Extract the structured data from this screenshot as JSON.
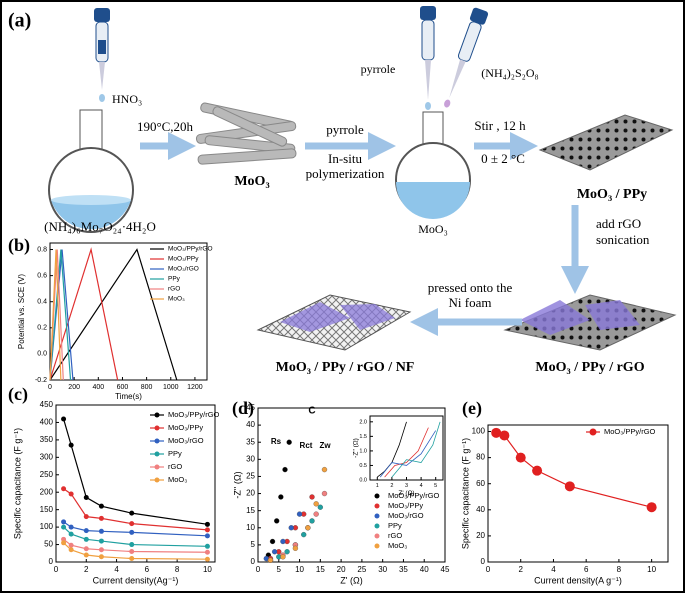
{
  "diagram": {
    "panel": "(a)",
    "reagent_acid": "HNO₃",
    "hydrothermal": "190°C,20h",
    "precursor": "(NH₄)₆Mo₇O₂₄·4H₂O",
    "rods": "MoO₃",
    "step2_top": "pyrrole",
    "step2_bottom": [
      "In-situ",
      "polymerization"
    ],
    "pipette_left": "pyrrole",
    "pipette_right": "(NH₄)₂S₂O₈",
    "flask2": "MoO₃",
    "stir": "Stir , 12 h",
    "temp": "0 ± 2 °C",
    "product1": "MoO₃ / PPy",
    "step4": [
      "add rGO",
      "sonication"
    ],
    "product2": "MoO₃ / PPy / rGO",
    "step5": [
      "pressed onto the",
      "Ni foam"
    ],
    "product3": "MoO₃ / PPy / rGO / NF"
  },
  "chart_data": [
    {
      "type": "line",
      "panel": "(b)",
      "x_label": "Time(s)",
      "y_label": "Potential vs. SCE (V)",
      "xlim": [
        0,
        1300
      ],
      "xticks": [
        0,
        200,
        400,
        600,
        800,
        1000,
        1200
      ],
      "ylim": [
        -0.2,
        0.85
      ],
      "yticks": [
        -0.2,
        {
          "value": 0,
          "label": "0.0"
        },
        0.2,
        0.4,
        0.6,
        0.8
      ],
      "legend": "upper right",
      "markers": false,
      "series": [
        {
          "name": "MoO₃/PPy/rGO",
          "color": "#000000",
          "x": [
            0,
            720,
            1050
          ],
          "values": [
            -0.2,
            0.8,
            -0.2
          ]
        },
        {
          "name": "MoO₃/PPy",
          "color": "#e03030",
          "x": [
            0,
            340,
            560
          ],
          "values": [
            -0.2,
            0.8,
            -0.2
          ]
        },
        {
          "name": "MoO₃/rGO",
          "color": "#3060c0",
          "x": [
            0,
            100,
            190
          ],
          "values": [
            -0.2,
            0.8,
            -0.2
          ]
        },
        {
          "name": "PPy",
          "color": "#20a0a0",
          "x": [
            0,
            90,
            170
          ],
          "values": [
            -0.2,
            0.8,
            -0.2
          ]
        },
        {
          "name": "rGO",
          "color": "#f08080",
          "x": [
            0,
            60,
            110
          ],
          "values": [
            -0.2,
            0.8,
            -0.2
          ]
        },
        {
          "name": "MoO₃",
          "color": "#f0a040",
          "x": [
            0,
            50,
            90
          ],
          "values": [
            -0.2,
            0.8,
            -0.2
          ]
        }
      ]
    },
    {
      "type": "line",
      "panel": "(c)",
      "x_label": "Current density(Ag⁻¹)",
      "y_label": "Specific capacitance (F g⁻¹)",
      "xlim": [
        0,
        10.5
      ],
      "xticks": [
        0,
        2,
        4,
        6,
        8,
        10
      ],
      "ylim": [
        0,
        450
      ],
      "yticks": [
        0,
        50,
        100,
        150,
        200,
        250,
        300,
        350,
        400,
        450
      ],
      "legend": "upper right",
      "markers": true,
      "x": [
        0.5,
        1,
        2,
        3,
        5,
        10
      ],
      "series": [
        {
          "name": "MoO₃/PPy/rGO",
          "color": "#000000",
          "values": [
            410,
            335,
            185,
            160,
            140,
            108
          ]
        },
        {
          "name": "MoO₃/PPy",
          "color": "#e03030",
          "values": [
            210,
            195,
            130,
            125,
            110,
            92
          ]
        },
        {
          "name": "MoO₃/rGO",
          "color": "#3060c0",
          "values": [
            115,
            100,
            90,
            88,
            85,
            75
          ]
        },
        {
          "name": "PPy",
          "color": "#20a0a0",
          "values": [
            100,
            80,
            65,
            60,
            50,
            45
          ]
        },
        {
          "name": "rGO",
          "color": "#f08080",
          "values": [
            65,
            48,
            38,
            35,
            30,
            28
          ]
        },
        {
          "name": "MoO₃",
          "color": "#f0a040",
          "values": [
            55,
            35,
            20,
            15,
            10,
            8
          ]
        }
      ]
    },
    {
      "type": "scatter",
      "panel": "(d)",
      "x_label": "Z' (Ω)",
      "y_label": "-Z'' (Ω)",
      "xlim": [
        0,
        45
      ],
      "xticks": [
        0,
        5,
        10,
        15,
        20,
        25,
        30,
        35,
        40,
        45
      ],
      "ylim": [
        0,
        45
      ],
      "yticks": [
        0,
        5,
        10,
        15,
        20,
        25,
        30,
        35,
        40,
        45
      ],
      "legend": "lower right",
      "circuit_labels": [
        "C",
        "Rs",
        "Rct",
        "Zw"
      ],
      "series": [
        {
          "name": "MoO₃/PPy/rGO",
          "color": "#000000",
          "x": [
            2.5,
            3.5,
            4.5,
            5.5,
            6.5,
            7.5
          ],
          "values": [
            2,
            6,
            12,
            19,
            27,
            35
          ]
        },
        {
          "name": "MoO₃/PPy",
          "color": "#e03030",
          "x": [
            3,
            5,
            7,
            9,
            11,
            13
          ],
          "values": [
            1,
            3,
            6,
            10,
            14,
            19
          ]
        },
        {
          "name": "MoO₃/rGO",
          "color": "#3060c0",
          "x": [
            2,
            4,
            6,
            8,
            10
          ],
          "values": [
            1,
            3,
            6,
            10,
            14
          ]
        },
        {
          "name": "PPy",
          "color": "#20a0a0",
          "x": [
            3,
            5,
            7,
            9,
            11,
            13,
            15
          ],
          "values": [
            0.5,
            1.5,
            3,
            5,
            8,
            12,
            16
          ]
        },
        {
          "name": "rGO",
          "color": "#f08080",
          "x": [
            3,
            6,
            9,
            12,
            14,
            16
          ],
          "values": [
            0.5,
            2,
            5,
            10,
            14,
            20
          ]
        },
        {
          "name": "MoO₃",
          "color": "#f0a040",
          "x": [
            3,
            6,
            9,
            12,
            14,
            16
          ],
          "values": [
            0.5,
            1.5,
            4,
            10,
            17,
            27
          ]
        }
      ]
    },
    {
      "type": "line",
      "panel": "(e)",
      "x_label": "Current density(A g⁻¹)",
      "y_label": "Specific capacitance (F g⁻¹)",
      "xlim": [
        0,
        11
      ],
      "xticks": [
        0,
        2,
        4,
        6,
        8,
        10
      ],
      "ylim": [
        0,
        105
      ],
      "yticks": [
        0,
        20,
        40,
        60,
        80,
        100
      ],
      "legend": "upper right",
      "markers": true,
      "x": [
        0.5,
        1,
        2,
        3,
        5,
        10
      ],
      "series": [
        {
          "name": "MoO₃/PPy/rGO",
          "color": "#e02020",
          "values": [
            99,
            97,
            80,
            70,
            58,
            42
          ]
        }
      ]
    },
    {
      "type": "line",
      "x_label": "Z' (Ω)",
      "y_label": "-Z'' (Ω)",
      "xlim": [
        0.5,
        5.5
      ],
      "xticks": [
        1,
        2,
        3,
        4,
        5
      ],
      "ylim": [
        0,
        2.2
      ],
      "yticks": [
        {
          "value": 0,
          "label": "0.0"
        },
        0.5,
        {
          "value": 1,
          "label": "1.0"
        },
        1.5,
        {
          "value": 2,
          "label": "2.0"
        }
      ],
      "markers": false,
      "series": [
        {
          "color": "#000000",
          "x": [
            1,
            1.5,
            2,
            2.5,
            3
          ],
          "values": [
            0.1,
            0.3,
            0.6,
            1.2,
            2
          ]
        },
        {
          "color": "#e03030",
          "x": [
            1.5,
            2.2,
            3,
            3.8,
            4.5
          ],
          "values": [
            0.1,
            0.5,
            0.6,
            1.0,
            1.8
          ]
        },
        {
          "color": "#3060c0",
          "x": [
            1.2,
            2,
            3,
            4,
            5
          ],
          "values": [
            0.1,
            0.6,
            0.5,
            0.9,
            1.7
          ]
        },
        {
          "color": "#20a0a0",
          "x": [
            2,
            3,
            4,
            4.8,
            5.3
          ],
          "values": [
            0.1,
            0.7,
            0.6,
            1.2,
            2.0
          ]
        }
      ]
    }
  ]
}
